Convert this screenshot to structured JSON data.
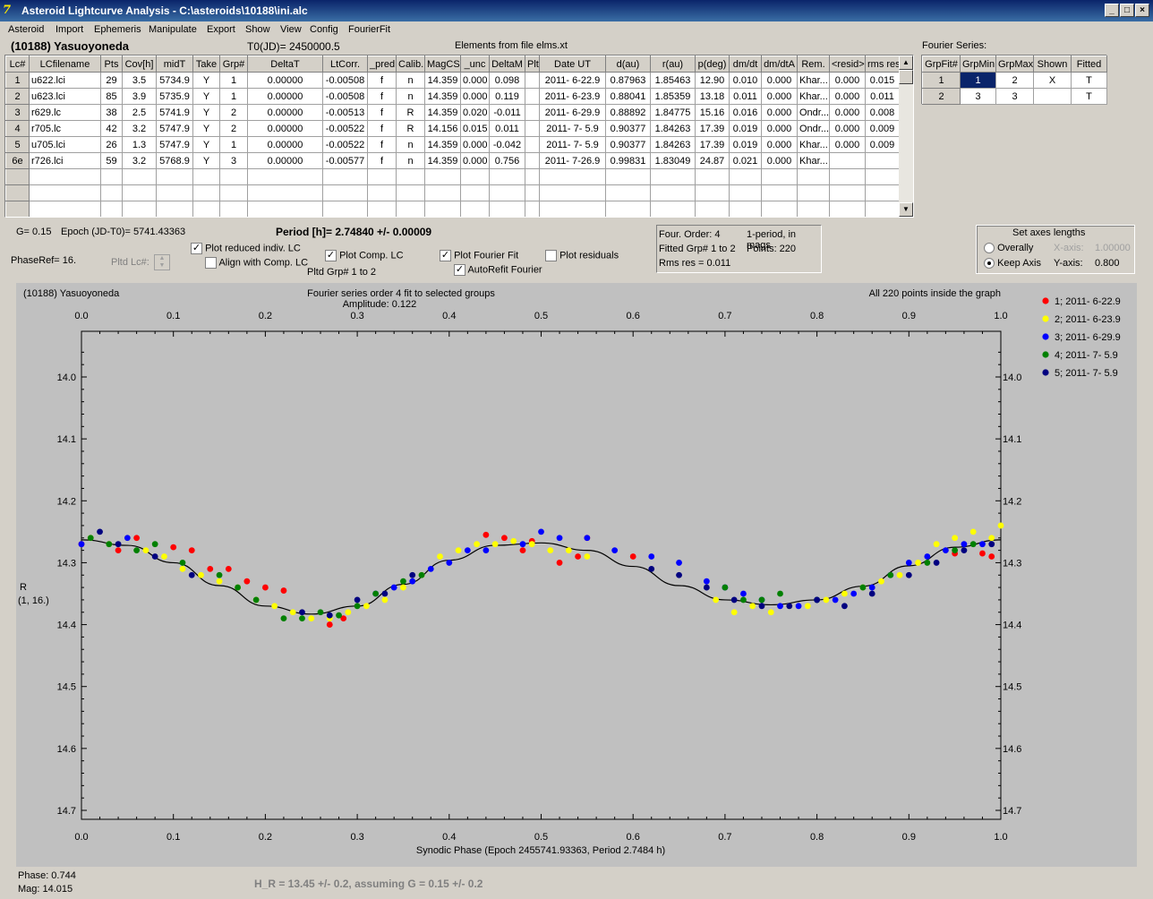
{
  "window": {
    "title": "Asteroid Lightcurve Analysis - C:\\asteroids\\10188\\ini.alc",
    "minimize_label": "_",
    "restore_label": "□",
    "close_label": "×"
  },
  "menu": [
    "Asteroid",
    "Import",
    "Ephemeris",
    "Manipulate",
    "Export",
    "Show",
    "View",
    "Config",
    "FourierFit"
  ],
  "header": {
    "asteroid_name": "(10188) Yasuoyoneda",
    "t0": "T0(JD)= 2450000.5",
    "elements": "Elements from file elms.xt",
    "fourier_series_label": "Fourier Series:"
  },
  "lc_table": {
    "columns": [
      "Lc#",
      "LCfilename",
      "Pts",
      "Cov[h]",
      "midT",
      "Take",
      "Grp#",
      "DeltaT",
      "LtCorr.",
      "_pred",
      "Calib.",
      "MagCS",
      "_unc",
      "DeltaM",
      "Plt",
      "Date UT",
      "d(au)",
      "r(au)",
      "p(deg)",
      "dm/dt",
      "dm/dtA",
      "Rem.",
      "<resid>",
      "rms res"
    ],
    "rows": [
      [
        "1",
        "u622.lci",
        "29",
        "3.5",
        "5734.9",
        "Y",
        "1",
        "0.00000",
        "-0.00508",
        "f",
        "n",
        "14.359",
        "0.000",
        "0.098",
        "",
        "2011- 6-22.9",
        "0.87963",
        "1.85463",
        "12.90",
        "0.010",
        "0.000",
        "Khar...",
        "0.000",
        "0.015"
      ],
      [
        "2",
        "u623.lci",
        "85",
        "3.9",
        "5735.9",
        "Y",
        "1",
        "0.00000",
        "-0.00508",
        "f",
        "n",
        "14.359",
        "0.000",
        "0.119",
        "",
        "2011- 6-23.9",
        "0.88041",
        "1.85359",
        "13.18",
        "0.011",
        "0.000",
        "Khar...",
        "0.000",
        "0.011"
      ],
      [
        "3",
        "r629.lc",
        "38",
        "2.5",
        "5741.9",
        "Y",
        "2",
        "0.00000",
        "-0.00513",
        "f",
        "R",
        "14.359",
        "0.020",
        "-0.011",
        "",
        "2011- 6-29.9",
        "0.88892",
        "1.84775",
        "15.16",
        "0.016",
        "0.000",
        "Ondr...",
        "0.000",
        "0.008"
      ],
      [
        "4",
        "r705.lc",
        "42",
        "3.2",
        "5747.9",
        "Y",
        "2",
        "0.00000",
        "-0.00522",
        "f",
        "R",
        "14.156",
        "0.015",
        "0.011",
        "",
        "2011- 7- 5.9",
        "0.90377",
        "1.84263",
        "17.39",
        "0.019",
        "0.000",
        "Ondr...",
        "0.000",
        "0.009"
      ],
      [
        "5",
        "u705.lci",
        "26",
        "1.3",
        "5747.9",
        "Y",
        "1",
        "0.00000",
        "-0.00522",
        "f",
        "n",
        "14.359",
        "0.000",
        "-0.042",
        "",
        "2011- 7- 5.9",
        "0.90377",
        "1.84263",
        "17.39",
        "0.019",
        "0.000",
        "Khar...",
        "0.000",
        "0.009"
      ],
      [
        "6e",
        "r726.lci",
        "59",
        "3.2",
        "5768.9",
        "Y",
        "3",
        "0.00000",
        "-0.00577",
        "f",
        "n",
        "14.359",
        "0.000",
        "0.756",
        "",
        "2011- 7-26.9",
        "0.99831",
        "1.83049",
        "24.87",
        "0.021",
        "0.000",
        "Khar...",
        "",
        ""
      ]
    ]
  },
  "fourier_table": {
    "columns": [
      "GrpFit#",
      "GrpMin",
      "GrpMax",
      "Shown",
      "Fitted"
    ],
    "rows": [
      [
        "1",
        "1",
        "2",
        "X",
        "T"
      ],
      [
        "2",
        "3",
        "3",
        "",
        "T"
      ]
    ]
  },
  "controls": {
    "g_value": "G= 0.15",
    "epoch": "Epoch (JD-T0)= 5741.43363",
    "period": "Period [h]= 2.74840 +/- 0.00009",
    "phase_ref": "PhaseRef= 16.",
    "pltd_lc": "Pltd Lc#:",
    "plot_reduced": "Plot reduced indiv. LC",
    "align_comp": "Align with Comp. LC",
    "plot_comp": "Plot Comp. LC",
    "pltd_grp": "Pltd Grp#  1   to   2",
    "plot_fourier": "Plot Fourier Fit",
    "autorefit": "AutoRefit Fourier",
    "plot_residuals": "Plot residuals",
    "check_mark": "✓"
  },
  "info_box": {
    "four_order": "Four. Order:  4",
    "period_mode": "1-period, in mags",
    "fitted_grp": "Fitted Grp# 1 to 2",
    "points": "Points: 220",
    "rms": "Rms res     = 0.011"
  },
  "axes_box": {
    "title": "Set axes lengths",
    "overally": "Overally",
    "keep_axis": "Keep Axis",
    "x_label": "X-axis:",
    "x_value": "1.00000",
    "y_label": "Y-axis:",
    "y_value": "0.800"
  },
  "plot": {
    "name_label": "(10188) Yasuoyoneda",
    "fourier_label": "Fourier series order 4 fit to selected groups",
    "amplitude": "Amplitude: 0.122",
    "inside_label": "All 220 points inside the graph",
    "y_axis_label_1": "R",
    "y_axis_label_2": "(1, 16.)",
    "x_axis_label": "Synodic Phase (Epoch 2455741.93363, Period 2.7484 h)"
  },
  "chart_data": {
    "type": "scatter",
    "title": "Fourier series order 4 fit to selected groups",
    "xlabel": "Synodic Phase (Epoch 2455741.93363, Period 2.7484 h)",
    "ylabel": "R",
    "xlim": [
      0,
      1
    ],
    "ylim": [
      13.9,
      14.7
    ],
    "y_inverted": true,
    "x_ticks": [
      "0.0",
      "0.1",
      "0.2",
      "0.3",
      "0.4",
      "0.5",
      "0.6",
      "0.7",
      "0.8",
      "0.9",
      "1.0"
    ],
    "y_ticks": [
      "14.0",
      "14.1",
      "14.2",
      "14.3",
      "14.4",
      "14.5",
      "14.6",
      "14.7"
    ],
    "legend_position": "right",
    "fit_curve": {
      "x": [
        0.0,
        0.05,
        0.1,
        0.15,
        0.2,
        0.25,
        0.3,
        0.35,
        0.4,
        0.45,
        0.5,
        0.55,
        0.6,
        0.65,
        0.7,
        0.75,
        0.8,
        0.85,
        0.9,
        0.95,
        1.0
      ],
      "y": [
        14.263,
        14.272,
        14.3,
        14.337,
        14.37,
        14.383,
        14.37,
        14.335,
        14.296,
        14.272,
        14.268,
        14.28,
        14.306,
        14.337,
        14.36,
        14.368,
        14.36,
        14.338,
        14.305,
        14.275,
        14.263
      ]
    },
    "series": [
      {
        "name": "1; 2011- 6-22.9",
        "color": "#ff0000",
        "x": [
          0.0,
          0.04,
          0.06,
          0.1,
          0.12,
          0.14,
          0.16,
          0.18,
          0.2,
          0.22,
          0.27,
          0.285,
          0.44,
          0.46,
          0.48,
          0.49,
          0.52,
          0.54,
          0.55,
          0.6,
          0.95,
          0.98,
          0.99
        ],
        "y": [
          14.27,
          14.28,
          14.26,
          14.275,
          14.28,
          14.31,
          14.31,
          14.33,
          14.34,
          14.345,
          14.4,
          14.39,
          14.255,
          14.26,
          14.28,
          14.265,
          14.3,
          14.29,
          14.26,
          14.29,
          14.285,
          14.285,
          14.29
        ]
      },
      {
        "name": "2; 2011- 6-23.9",
        "color": "#ffff00",
        "x": [
          0.01,
          0.03,
          0.05,
          0.07,
          0.09,
          0.11,
          0.13,
          0.15,
          0.17,
          0.19,
          0.21,
          0.23,
          0.25,
          0.27,
          0.29,
          0.31,
          0.33,
          0.35,
          0.37,
          0.39,
          0.41,
          0.43,
          0.45,
          0.47,
          0.49,
          0.51,
          0.53,
          0.55,
          0.69,
          0.71,
          0.73,
          0.75,
          0.77,
          0.79,
          0.81,
          0.83,
          0.85,
          0.87,
          0.89,
          0.91,
          0.93,
          0.95,
          0.97,
          0.99,
          1.0
        ],
        "y": [
          14.26,
          14.27,
          14.26,
          14.28,
          14.29,
          14.31,
          14.32,
          14.33,
          14.34,
          14.36,
          14.37,
          14.38,
          14.39,
          14.39,
          14.38,
          14.37,
          14.36,
          14.34,
          14.32,
          14.29,
          14.28,
          14.27,
          14.27,
          14.265,
          14.27,
          14.28,
          14.28,
          14.29,
          14.36,
          14.38,
          14.37,
          14.38,
          14.37,
          14.37,
          14.36,
          14.35,
          14.34,
          14.33,
          14.32,
          14.3,
          14.27,
          14.26,
          14.25,
          14.26,
          14.24
        ]
      },
      {
        "name": "3; 2011- 6-29.9",
        "color": "#0000ff",
        "x": [
          0.0,
          0.05,
          0.32,
          0.34,
          0.36,
          0.38,
          0.4,
          0.42,
          0.44,
          0.48,
          0.5,
          0.52,
          0.55,
          0.58,
          0.62,
          0.65,
          0.68,
          0.7,
          0.72,
          0.74,
          0.76,
          0.78,
          0.8,
          0.82,
          0.84,
          0.86,
          0.88,
          0.9,
          0.92,
          0.94,
          0.96,
          0.98
        ],
        "y": [
          14.27,
          14.26,
          14.35,
          14.34,
          14.33,
          14.31,
          14.3,
          14.28,
          14.28,
          14.27,
          14.25,
          14.26,
          14.26,
          14.28,
          14.29,
          14.3,
          14.33,
          14.34,
          14.35,
          14.36,
          14.37,
          14.37,
          14.36,
          14.36,
          14.35,
          14.34,
          14.32,
          14.3,
          14.29,
          14.28,
          14.27,
          14.27
        ]
      },
      {
        "name": "4; 2011- 7- 5.9",
        "color": "#008000",
        "x": [
          0.01,
          0.03,
          0.06,
          0.08,
          0.11,
          0.15,
          0.17,
          0.19,
          0.22,
          0.24,
          0.26,
          0.28,
          0.3,
          0.32,
          0.35,
          0.37,
          0.7,
          0.72,
          0.74,
          0.76,
          0.8,
          0.85,
          0.88,
          0.92,
          0.95,
          0.97
        ],
        "y": [
          14.26,
          14.27,
          14.28,
          14.27,
          14.3,
          14.32,
          14.34,
          14.36,
          14.39,
          14.39,
          14.38,
          14.385,
          14.37,
          14.35,
          14.33,
          14.32,
          14.34,
          14.36,
          14.36,
          14.35,
          14.36,
          14.34,
          14.32,
          14.3,
          14.28,
          14.27
        ]
      },
      {
        "name": "5; 2011- 7- 5.9",
        "color": "#000080",
        "x": [
          0.02,
          0.04,
          0.08,
          0.12,
          0.24,
          0.27,
          0.3,
          0.33,
          0.36,
          0.62,
          0.65,
          0.68,
          0.71,
          0.74,
          0.77,
          0.8,
          0.83,
          0.86,
          0.9,
          0.93,
          0.96,
          0.99
        ],
        "y": [
          14.25,
          14.27,
          14.29,
          14.32,
          14.38,
          14.385,
          14.36,
          14.35,
          14.32,
          14.31,
          14.32,
          14.34,
          14.36,
          14.37,
          14.37,
          14.36,
          14.37,
          14.35,
          14.32,
          14.3,
          14.28,
          14.27
        ]
      }
    ]
  },
  "status": {
    "phase": "Phase:  0.744",
    "mag": "Mag:    14.015",
    "h_r": "H_R = 13.45 +/- 0.2, assuming G = 0.15 +/- 0.2"
  }
}
